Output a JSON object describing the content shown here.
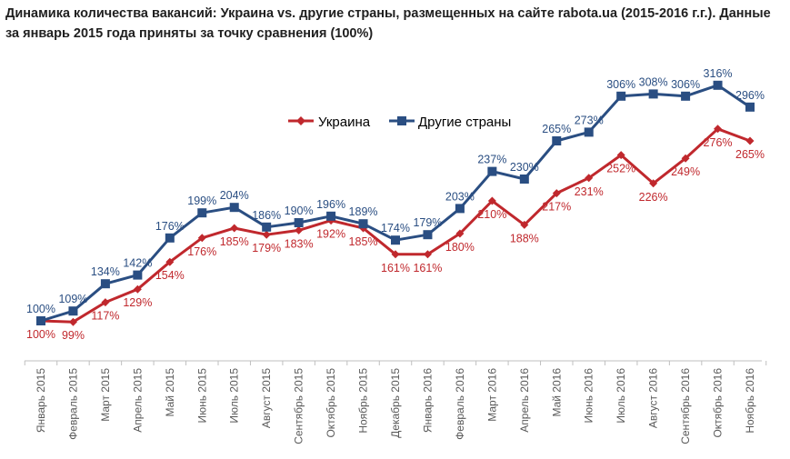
{
  "title": "Динамика количества вакансий: Украина vs. другие страны, размещенных на сайте rabota.ua (2015-2016 г.г.). Данные за январь 2015 года приняты за точку сравнения (100%)",
  "chart_data": {
    "type": "line",
    "title": "Динамика количества вакансий: Украина vs. другие страны, размещенных на сайте rabota.ua (2015-2016 г.г.). Данные за январь 2015 года приняты за точку сравнения (100%)",
    "categories": [
      "Январь 2015",
      "Февраль 2015",
      "Март 2015",
      "Апрель 2015",
      "Май 2015",
      "Июнь 2015",
      "Июль 2015",
      "Август 2015",
      "Сентябрь 2015",
      "Октябрь 2015",
      "Ноябрь 2015",
      "Декабрь 2015",
      "Январь 2016",
      "Февраль 2016",
      "Март 2016",
      "Апрель 2016",
      "Май 2016",
      "Июнь 2016",
      "Июль 2016",
      "Август 2016",
      "Сентябрь 2016",
      "Октябрь 2016",
      "Ноябрь 2016"
    ],
    "series": [
      {
        "name": "Украина",
        "color": "#c0282d",
        "values": [
          100,
          99,
          117,
          129,
          154,
          176,
          185,
          179,
          183,
          192,
          185,
          161,
          161,
          180,
          210,
          188,
          217,
          231,
          252,
          226,
          249,
          276,
          265
        ]
      },
      {
        "name": "Другие страны",
        "color": "#2a4e82",
        "values": [
          100,
          109,
          134,
          142,
          176,
          199,
          204,
          186,
          190,
          196,
          189,
          174,
          179,
          203,
          237,
          230,
          265,
          273,
          306,
          308,
          306,
          316,
          296
        ]
      }
    ],
    "ylim": [
      20,
      330
    ],
    "value_suffix": "%",
    "grid": false,
    "legend_position": "top"
  }
}
